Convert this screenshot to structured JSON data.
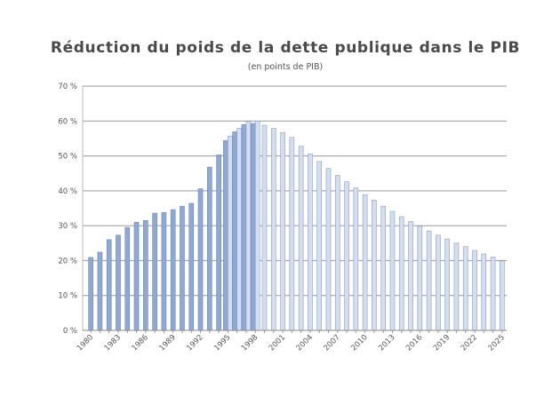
{
  "chart_data": {
    "type": "bar",
    "title": "Réduction du poids de la dette publique dans le PIB",
    "subtitle": "(en points de PIB)",
    "xlabel": "",
    "ylabel": "",
    "ylim": [
      0,
      70
    ],
    "yticks": [
      "0 %",
      "10 %",
      "20 %",
      "30 %",
      "40 %",
      "50 %",
      "60 %",
      "70 %"
    ],
    "grid": true,
    "legend": "none",
    "categories": [
      1980,
      1981,
      1982,
      1983,
      1984,
      1985,
      1986,
      1987,
      1988,
      1989,
      1990,
      1991,
      1992,
      1993,
      1994,
      1995,
      1996,
      1997,
      1998,
      1999,
      2000,
      2001,
      2002,
      2003,
      2004,
      2005,
      2006,
      2007,
      2008,
      2009,
      2010,
      2011,
      2012,
      2013,
      2014,
      2015,
      2016,
      2017,
      2018,
      2019,
      2020,
      2021,
      2022,
      2023,
      2024,
      2025
    ],
    "xtick_labels": [
      "1980",
      "1983",
      "1986",
      "1989",
      "1992",
      "1995",
      "1998",
      "2001",
      "2004",
      "2007",
      "2010",
      "2013",
      "2016",
      "2019",
      "2022",
      "2025"
    ],
    "series": [
      {
        "color": "#8ea9d6",
        "values": [
          20.9,
          22.4,
          26.0,
          27.3,
          29.5,
          31.0,
          31.5,
          33.6,
          33.8,
          34.6,
          35.6,
          36.4,
          40.6,
          46.8,
          50.3,
          54.4,
          56.9,
          59.0,
          59.3,
          null,
          null,
          null,
          null,
          null,
          null,
          null,
          null,
          null,
          null,
          null,
          null,
          null,
          null,
          null,
          null,
          null,
          null,
          null,
          null,
          null,
          null,
          null,
          null,
          null,
          null,
          null
        ]
      },
      {
        "color": "#d3def2",
        "values": [
          null,
          null,
          null,
          null,
          null,
          null,
          null,
          null,
          null,
          null,
          null,
          null,
          null,
          null,
          null,
          55.7,
          57.9,
          59.9,
          60.0,
          58.8,
          57.9,
          56.7,
          55.3,
          52.8,
          50.6,
          48.4,
          46.4,
          44.4,
          42.6,
          40.8,
          38.9,
          37.3,
          35.6,
          34.1,
          32.6,
          31.2,
          29.9,
          28.5,
          27.3,
          26.2,
          25.0,
          24.0,
          22.9,
          21.9,
          21.0,
          19.9
        ]
      }
    ]
  }
}
